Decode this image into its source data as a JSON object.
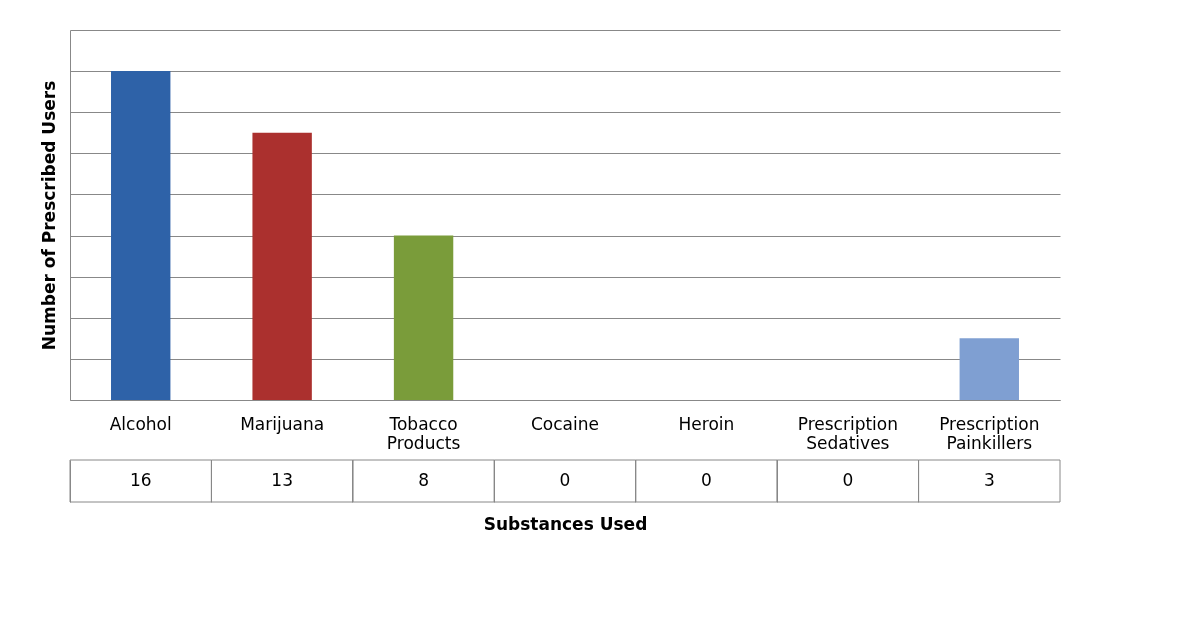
{
  "chart_data": {
    "type": "bar",
    "xlabel": "Substances Used",
    "ylabel": "Number of Prescribed Users",
    "categories": [
      "Alcohol",
      "Marijuana",
      "Tobacco Products",
      "Cocaine",
      "Heroin",
      "Prescription Sedatives",
      "Prescription Painkillers"
    ],
    "values": [
      16,
      13,
      8,
      0,
      0,
      0,
      3
    ],
    "colors": [
      "#2e62a8",
      "#ab302e",
      "#7a9c3a",
      "#6a4c93",
      "#2f9bb3",
      "#e07b2a",
      "#7f9fd2"
    ],
    "ylim": [
      0,
      18
    ],
    "yticks": [
      {
        "value": 0,
        "label": null
      },
      {
        "value": 2,
        "label": null
      },
      {
        "value": 4,
        "label": null
      },
      {
        "value": 6,
        "label": null
      },
      {
        "value": 8,
        "label": null
      },
      {
        "value": 10,
        "label": null
      },
      {
        "value": 12,
        "label": null
      },
      {
        "value": 14,
        "label": null
      },
      {
        "value": 16,
        "label": null
      },
      {
        "value": 18,
        "label": null
      }
    ],
    "tick_labels": "x",
    "grid": "y",
    "legend": false,
    "data_labels": true
  }
}
